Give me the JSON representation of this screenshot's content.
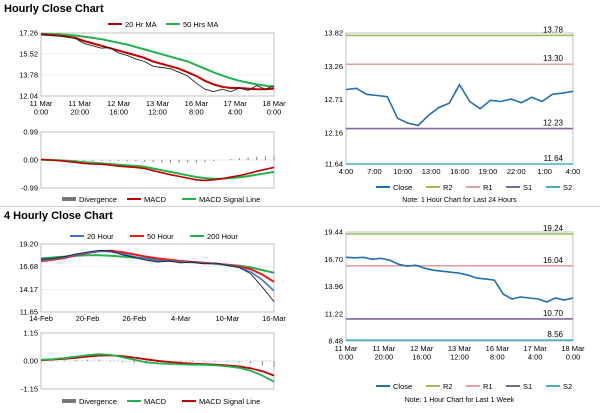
{
  "sections": {
    "hourly_title": "Hourly Close Chart",
    "four_hourly_title": "4 Hourly Close Chart"
  },
  "colors": {
    "ma_short": "#c00000",
    "ma_long": "#22b14c",
    "ma_200": "#e81a1a",
    "ma_20h": "#4472c4",
    "close": "#1f6fb2",
    "r2": "#9bbb59",
    "r1": "#e6a0a0",
    "s1": "#8064a2",
    "s2": "#4bacc6",
    "macd_short": "#c00000",
    "signal": "#22b14c"
  },
  "chart_data": [
    {
      "id": "hourly_price",
      "type": "line",
      "x_ticks": [
        "11 Mar\n0:00",
        "11 Mar\n20:00",
        "12 Mar\n16:00",
        "13 Mar\n12:00",
        "16 Mar\n8:00",
        "17 Mar\n4:00",
        "18 Mar\n0:00"
      ],
      "ylim": [
        12.04,
        17.26
      ],
      "y_ticks": [
        "12.04",
        "13.78",
        "15.52",
        "17.26"
      ],
      "legend": [
        "20 Hr MA",
        "50 Hrs MA"
      ],
      "price": [
        17.1,
        17.05,
        17.0,
        16.95,
        16.8,
        16.4,
        16.2,
        16.0,
        16.05,
        15.6,
        15.4,
        15.1,
        14.9,
        14.5,
        14.4,
        14.3,
        14.0,
        13.7,
        13.1,
        12.6,
        12.4,
        12.6,
        12.4,
        12.7,
        12.5,
        12.9,
        12.6,
        12.9
      ],
      "ma20": [
        17.15,
        17.1,
        17.05,
        16.95,
        16.85,
        16.6,
        16.4,
        16.2,
        16.0,
        15.8,
        15.6,
        15.4,
        15.2,
        14.9,
        14.7,
        14.5,
        14.3,
        14.0,
        13.7,
        13.3,
        13.0,
        12.8,
        12.7,
        12.7,
        12.65,
        12.6,
        12.6,
        12.65
      ],
      "ma50": [
        17.2,
        17.18,
        17.15,
        17.1,
        17.05,
        16.95,
        16.85,
        16.75,
        16.6,
        16.45,
        16.3,
        16.1,
        15.9,
        15.7,
        15.5,
        15.3,
        15.1,
        14.9,
        14.6,
        14.3,
        14.0,
        13.75,
        13.5,
        13.3,
        13.15,
        13.0,
        12.9,
        12.8
      ]
    },
    {
      "id": "hourly_macd",
      "type": "line",
      "ylim": [
        -0.99,
        0.99
      ],
      "y_ticks": [
        "-0.99",
        "0.00",
        "0.99"
      ],
      "legend": [
        "Divergence",
        "MACD",
        "MACD Signal Line"
      ],
      "macd": [
        0.02,
        0.0,
        -0.02,
        -0.05,
        -0.08,
        -0.12,
        -0.14,
        -0.15,
        -0.18,
        -0.22,
        -0.24,
        -0.26,
        -0.3,
        -0.38,
        -0.45,
        -0.52,
        -0.58,
        -0.64,
        -0.7,
        -0.72,
        -0.7,
        -0.66,
        -0.6,
        -0.55,
        -0.48,
        -0.4,
        -0.33,
        -0.26
      ],
      "signal": [
        0.01,
        0.0,
        -0.01,
        -0.03,
        -0.05,
        -0.08,
        -0.1,
        -0.12,
        -0.14,
        -0.17,
        -0.19,
        -0.21,
        -0.24,
        -0.3,
        -0.36,
        -0.42,
        -0.48,
        -0.54,
        -0.6,
        -0.64,
        -0.66,
        -0.66,
        -0.64,
        -0.61,
        -0.57,
        -0.52,
        -0.47,
        -0.42
      ]
    },
    {
      "id": "hourly_24h",
      "type": "line",
      "x_ticks": [
        "4:00",
        "7:00",
        "10:00",
        "13:00",
        "16:00",
        "19:00",
        "22:00",
        "1:00",
        "4:00"
      ],
      "ylim": [
        11.64,
        13.82
      ],
      "y_ticks": [
        "11.64",
        "12.16",
        "12.71",
        "13.26",
        "13.82"
      ],
      "close": [
        12.88,
        12.9,
        12.8,
        12.78,
        12.76,
        12.4,
        12.32,
        12.28,
        12.45,
        12.58,
        12.65,
        12.96,
        12.68,
        12.56,
        12.7,
        12.68,
        12.72,
        12.66,
        12.75,
        12.68,
        12.8,
        12.82,
        12.85
      ],
      "levels": {
        "R2": 13.78,
        "R1": 13.3,
        "S1": 12.23,
        "S2": 11.64
      },
      "level_labels": {
        "R2": "13.78",
        "R1": "13.30",
        "S1": "12.23",
        "S2": "11.64"
      },
      "legend": [
        "Close",
        "R2",
        "R1",
        "S1",
        "S2"
      ],
      "note": "Note: 1 Hour Chart for Last 24 Hours"
    },
    {
      "id": "four_hourly_price",
      "type": "line",
      "x_ticks": [
        "14-Feb",
        "20-Feb",
        "26-Feb",
        "4-Mar",
        "10-Mar",
        "16-Mar"
      ],
      "ylim": [
        11.65,
        19.2
      ],
      "y_ticks": [
        "11.65",
        "14.17",
        "16.68",
        "19.20"
      ],
      "legend": [
        "20 Hour",
        "50 Hour",
        "200 Hour"
      ],
      "price": [
        17.5,
        17.6,
        17.8,
        18.1,
        18.3,
        18.5,
        18.4,
        18.0,
        17.7,
        17.4,
        17.2,
        17.3,
        17.1,
        17.2,
        17.0,
        17.1,
        16.8,
        16.6,
        15.9,
        14.4,
        12.8
      ],
      "ma20": [
        17.4,
        17.55,
        17.75,
        18.0,
        18.25,
        18.4,
        18.35,
        18.1,
        17.8,
        17.55,
        17.35,
        17.3,
        17.2,
        17.15,
        17.05,
        17.0,
        16.85,
        16.6,
        16.1,
        15.2,
        14.0
      ],
      "ma50": [
        17.3,
        17.45,
        17.65,
        17.95,
        18.2,
        18.4,
        18.45,
        18.3,
        18.05,
        17.8,
        17.6,
        17.45,
        17.3,
        17.2,
        17.1,
        17.0,
        16.9,
        16.7,
        16.4,
        15.8,
        15.0
      ],
      "ma200": [
        17.6,
        17.7,
        17.8,
        17.9,
        17.95,
        17.95,
        17.9,
        17.8,
        17.7,
        17.6,
        17.5,
        17.4,
        17.3,
        17.2,
        17.1,
        17.0,
        16.9,
        16.8,
        16.6,
        16.3,
        16.0
      ]
    },
    {
      "id": "four_hourly_macd",
      "type": "line",
      "ylim": [
        -1.15,
        1.15
      ],
      "y_ticks": [
        "-1.15",
        "0.00",
        "1.15"
      ],
      "legend": [
        "Divergence",
        "MACD",
        "MACD Signal Line"
      ],
      "macd": [
        0.05,
        0.08,
        0.12,
        0.18,
        0.24,
        0.28,
        0.25,
        0.15,
        0.05,
        -0.05,
        -0.1,
        -0.12,
        -0.14,
        -0.15,
        -0.16,
        -0.18,
        -0.22,
        -0.28,
        -0.4,
        -0.6,
        -0.85
      ],
      "signal": [
        0.03,
        0.06,
        0.09,
        0.13,
        0.18,
        0.22,
        0.23,
        0.2,
        0.14,
        0.07,
        0.01,
        -0.04,
        -0.08,
        -0.11,
        -0.13,
        -0.15,
        -0.18,
        -0.22,
        -0.3,
        -0.42,
        -0.6
      ]
    },
    {
      "id": "four_hourly_week",
      "type": "line",
      "x_ticks": [
        "11 Mar\n0:00",
        "11 Mar\n20:00",
        "12 Mar\n16:00",
        "13 Mar\n12:00",
        "16 Mar\n8:00",
        "17 Mar\n4:00",
        "18 Mar\n0:00"
      ],
      "ylim": [
        8.48,
        19.44
      ],
      "y_ticks": [
        "8.48",
        "11.22",
        "13.96",
        "16.70",
        "19.44"
      ],
      "close": [
        16.9,
        16.85,
        16.9,
        16.7,
        16.8,
        16.6,
        16.2,
        16.0,
        16.1,
        15.8,
        15.6,
        15.5,
        15.4,
        15.3,
        15.1,
        14.8,
        14.7,
        14.6,
        13.2,
        12.7,
        12.9,
        12.8,
        12.7,
        12.4,
        12.8,
        12.6,
        12.8
      ],
      "levels": {
        "R2": 19.24,
        "R1": 16.04,
        "S1": 10.7,
        "S2": 8.56
      },
      "level_labels": {
        "R2": "19.24",
        "R1": "16.04",
        "S1": "10.70",
        "S2": "8.56"
      },
      "legend": [
        "Close",
        "R2",
        "R1",
        "S1",
        "S2"
      ],
      "note": "Note: 1 Hour Chart for Last 1 Week"
    }
  ]
}
